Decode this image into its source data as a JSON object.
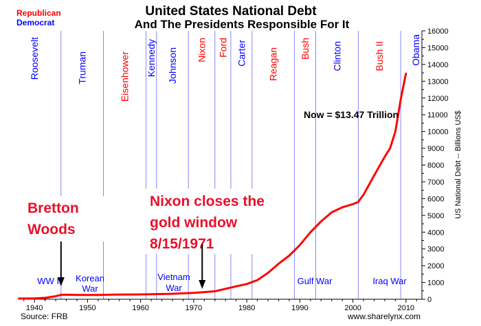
{
  "chart_data": {
    "type": "line",
    "title": "United States National Debt",
    "subtitle": "And The Presidents Responsible For It",
    "ylabel": "US National Debt -- Billions US$",
    "xlabel": "",
    "xlim": [
      1937,
      2013
    ],
    "ylim": [
      0,
      16000
    ],
    "x_ticks": [
      1940,
      1950,
      1960,
      1970,
      1980,
      1990,
      2000,
      2010
    ],
    "y_ticks": [
      0,
      1000,
      2000,
      3000,
      4000,
      5000,
      6000,
      7000,
      8000,
      9000,
      10000,
      11000,
      12000,
      13000,
      14000,
      15000,
      16000
    ],
    "grid": "x-only (vertical lines at presidential transitions)",
    "legend": {
      "placement": "top-left",
      "entries": [
        {
          "name": "Republican",
          "color": "#ff0000"
        },
        {
          "name": "Democrat",
          "color": "#0000ff"
        }
      ]
    },
    "series": [
      {
        "color": "#ff0000",
        "x": [
          1937,
          1940,
          1942,
          1944,
          1945,
          1946,
          1948,
          1950,
          1952,
          1955,
          1960,
          1965,
          1970,
          1972,
          1974,
          1976,
          1978,
          1980,
          1982,
          1984,
          1986,
          1988,
          1990,
          1992,
          1994,
          1996,
          1998,
          2000,
          2001,
          2002,
          2004,
          2006,
          2007,
          2008,
          2009,
          2010
        ],
        "y": [
          40,
          50,
          80,
          180,
          260,
          270,
          255,
          257,
          259,
          274,
          286,
          317,
          381,
          427,
          475,
          620,
          770,
          908,
          1140,
          1570,
          2120,
          2600,
          3230,
          4000,
          4640,
          5180,
          5480,
          5670,
          5800,
          6230,
          7380,
          8500,
          9000,
          10000,
          11900,
          13470
        ]
      }
    ],
    "presidents": [
      {
        "name": "Roosevelt",
        "party": "Democrat"
      },
      {
        "name": "Truman",
        "party": "Democrat"
      },
      {
        "name": "Eisenhower",
        "party": "Republican"
      },
      {
        "name": "Kennedy",
        "party": "Democrat"
      },
      {
        "name": "Johnson",
        "party": "Democrat"
      },
      {
        "name": "Nixon",
        "party": "Republican"
      },
      {
        "name": "Ford",
        "party": "Republican"
      },
      {
        "name": "Carter",
        "party": "Democrat"
      },
      {
        "name": "Reagan",
        "party": "Republican"
      },
      {
        "name": "Bush",
        "party": "Republican"
      },
      {
        "name": "Clinton",
        "party": "Democrat"
      },
      {
        "name": "Bush II",
        "party": "Republican"
      },
      {
        "name": "Obama",
        "party": "Democrat"
      }
    ],
    "transition_years": [
      1945,
      1953,
      1961,
      1963,
      1969,
      1974,
      1977,
      1981,
      1989,
      1993,
      2001,
      2009
    ],
    "wars": [
      {
        "label": "WW II",
        "lines": [
          "WW II"
        ]
      },
      {
        "label": "Korean War",
        "lines": [
          "Korean",
          "War"
        ]
      },
      {
        "label": "Vietnam War",
        "lines": [
          "Vietnam",
          "War"
        ]
      },
      {
        "label": "Gulf War",
        "lines": [
          "Gulf War"
        ]
      },
      {
        "label": "Iraq War",
        "lines": [
          "Iraq War"
        ]
      }
    ],
    "annotations": [
      {
        "id": "now",
        "text": "Now = $13.47 Trillion"
      },
      {
        "id": "bretton",
        "lines": [
          "Bretton",
          "Woods"
        ],
        "arrow_x": 1945
      },
      {
        "id": "nixon-gold",
        "lines": [
          "Nixon closes the",
          "gold window",
          "8/15/1971"
        ],
        "arrow_x": 1971.6
      }
    ],
    "source": "Source: FRB",
    "website": "www.sharelynx.com"
  }
}
